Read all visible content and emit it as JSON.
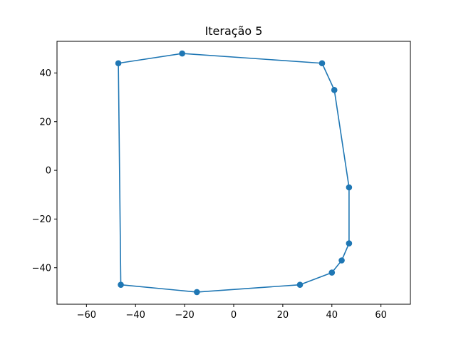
{
  "chart_data": {
    "type": "line",
    "title": "Iteração 5",
    "xlabel": "",
    "ylabel": "",
    "xlim": [
      -72,
      72
    ],
    "ylim": [
      -55,
      53
    ],
    "xticks": [
      -60,
      -40,
      -20,
      0,
      20,
      40,
      60
    ],
    "yticks": [
      -40,
      -20,
      0,
      20,
      40
    ],
    "xtick_labels": [
      "−60",
      "−40",
      "−20",
      "0",
      "20",
      "40",
      "60"
    ],
    "ytick_labels": [
      "−40",
      "−20",
      "0",
      "20",
      "40"
    ],
    "grid": false,
    "legend": "none",
    "color": "#1f77b4",
    "series": [
      {
        "closed": true,
        "x": [
          -47,
          -21,
          36,
          41,
          47,
          47,
          44,
          40,
          27,
          -15,
          -46
        ],
        "y": [
          44,
          48,
          44,
          33,
          -7,
          -30,
          -37,
          -42,
          -47,
          -50,
          -47
        ]
      }
    ]
  }
}
